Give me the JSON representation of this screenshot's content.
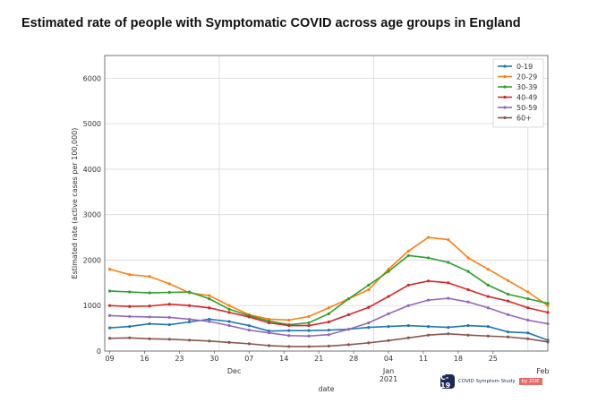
{
  "title": "Estimated rate of people with Symptomatic COVID across age groups in England",
  "logo": {
    "icon": "C-19",
    "text": "COVID Symptom Study",
    "badge": "by ZOE"
  },
  "chart_data": {
    "type": "line",
    "title": "Estimated rate of people with Symptomatic COVID across age groups in England",
    "xlabel": "date",
    "ylabel": "Estimated rate (active cases per 100,000)",
    "ylim": [
      0,
      6500
    ],
    "yticks": [
      0,
      1000,
      2000,
      3000,
      4000,
      5000,
      6000
    ],
    "x_start": "2020-11-09",
    "x_days": [
      0,
      4,
      8,
      12,
      16,
      20,
      24,
      28,
      32,
      36,
      40,
      44,
      48,
      52,
      56,
      60,
      64,
      68,
      72,
      76,
      80,
      84,
      88
    ],
    "xlim_days": [
      -1,
      88
    ],
    "xticks": [
      {
        "day": 0,
        "label": "09"
      },
      {
        "day": 7,
        "label": "16"
      },
      {
        "day": 14,
        "label": "23"
      },
      {
        "day": 21,
        "label": "30"
      },
      {
        "day": 28,
        "label": "07"
      },
      {
        "day": 35,
        "label": "14"
      },
      {
        "day": 42,
        "label": "21"
      },
      {
        "day": 49,
        "label": "28"
      },
      {
        "day": 56,
        "label": "04"
      },
      {
        "day": 63,
        "label": "11"
      },
      {
        "day": 70,
        "label": "18"
      },
      {
        "day": 77,
        "label": "25"
      }
    ],
    "month_labels": [
      {
        "day": 25,
        "label": "Dec"
      },
      {
        "day": 56,
        "label": "Jan\n2021"
      },
      {
        "day": 87,
        "label": "Feb"
      }
    ],
    "month_gridlines": [
      22,
      53,
      84
    ],
    "grid": true,
    "legend": "top-right",
    "series": [
      {
        "name": "0-19",
        "color": "#1f77b4",
        "values": [
          510,
          540,
          600,
          580,
          640,
          700,
          650,
          560,
          440,
          450,
          450,
          460,
          480,
          520,
          540,
          560,
          540,
          520,
          560,
          540,
          420,
          400,
          240
        ]
      },
      {
        "name": "20-29",
        "color": "#ff7f0e",
        "values": [
          1800,
          1680,
          1640,
          1480,
          1280,
          1220,
          1000,
          800,
          700,
          680,
          760,
          950,
          1150,
          1350,
          1800,
          2200,
          2500,
          2450,
          2050,
          1800,
          1550,
          1300,
          1000
        ]
      },
      {
        "name": "30-39",
        "color": "#2ca02c",
        "values": [
          1320,
          1300,
          1280,
          1290,
          1300,
          1150,
          920,
          780,
          660,
          580,
          620,
          820,
          1150,
          1450,
          1750,
          2100,
          2050,
          1950,
          1750,
          1450,
          1250,
          1150,
          1050
        ]
      },
      {
        "name": "40-49",
        "color": "#d62728",
        "values": [
          1000,
          980,
          990,
          1030,
          1000,
          950,
          850,
          750,
          620,
          560,
          560,
          640,
          800,
          960,
          1200,
          1450,
          1540,
          1500,
          1350,
          1200,
          1100,
          950,
          850
        ]
      },
      {
        "name": "50-59",
        "color": "#9467bd",
        "values": [
          780,
          760,
          750,
          740,
          700,
          650,
          560,
          460,
          400,
          340,
          330,
          360,
          480,
          620,
          820,
          1000,
          1120,
          1160,
          1080,
          950,
          800,
          680,
          600
        ]
      },
      {
        "name": "60+",
        "color": "#8c564b",
        "values": [
          280,
          290,
          270,
          260,
          240,
          220,
          190,
          160,
          120,
          100,
          100,
          110,
          140,
          180,
          230,
          290,
          350,
          380,
          350,
          330,
          310,
          270,
          200
        ]
      }
    ]
  }
}
